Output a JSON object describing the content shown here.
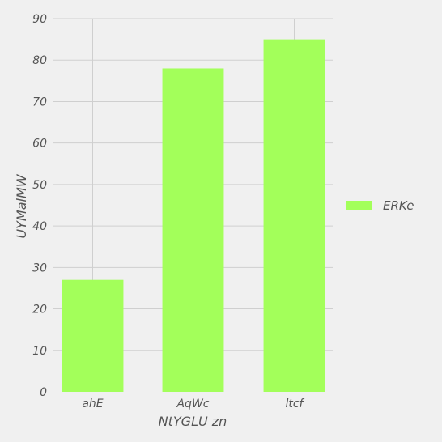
{
  "chart_data": {
    "type": "bar",
    "categories": [
      "ahE",
      "AqWc",
      "ltcf"
    ],
    "series": [
      {
        "name": "ERKe",
        "values": [
          27,
          78,
          85
        ]
      }
    ],
    "xlabel": "NtYGLU  zn",
    "ylabel": "UYMalMW",
    "ylim": [
      0,
      90
    ],
    "yticks": [
      0,
      10,
      20,
      30,
      40,
      50,
      60,
      70,
      80,
      90
    ],
    "grid": true,
    "legend_position": "right",
    "colors": {
      "bar": "#a3ff5a",
      "background": "#f0f0f0",
      "grid": "#cfcfcf"
    }
  }
}
